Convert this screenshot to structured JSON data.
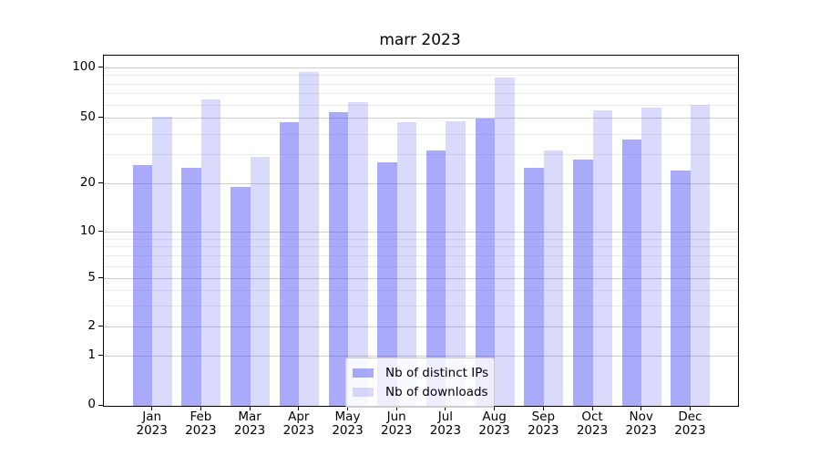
{
  "chart_data": {
    "type": "bar",
    "title": "marr 2023",
    "categories": [
      "Jan 2023",
      "Feb 2023",
      "Mar 2023",
      "Apr 2023",
      "May 2023",
      "Jun 2023",
      "Jul 2023",
      "Aug 2023",
      "Sep 2023",
      "Oct 2023",
      "Nov 2023",
      "Dec 2023"
    ],
    "series": [
      {
        "name": "Nb of distinct IPs",
        "color": "rgba(85,85,245,0.5)",
        "values": [
          26,
          25,
          19,
          47,
          54,
          27,
          32,
          50,
          25,
          28,
          37,
          24
        ]
      },
      {
        "name": "Nb of downloads",
        "color": "rgba(85,85,245,0.22)",
        "values": [
          51,
          65,
          29,
          95,
          62,
          47,
          48,
          88,
          32,
          56,
          58,
          60
        ]
      }
    ],
    "yscale": "symlog",
    "yticks": [
      0,
      1,
      2,
      5,
      10,
      20,
      50,
      100
    ],
    "yticks_minor": [
      3,
      4,
      6,
      7,
      8,
      9,
      30,
      40,
      60,
      70,
      80,
      90
    ],
    "ylim": [
      0,
      116
    ],
    "xlabel": "",
    "ylabel": "",
    "grid": true,
    "legend_position": "lower center"
  },
  "colors": {
    "grid_major": "#cccccc",
    "grid_minor": "#ebebeb",
    "spine": "#000000",
    "background": "#ffffff"
  }
}
